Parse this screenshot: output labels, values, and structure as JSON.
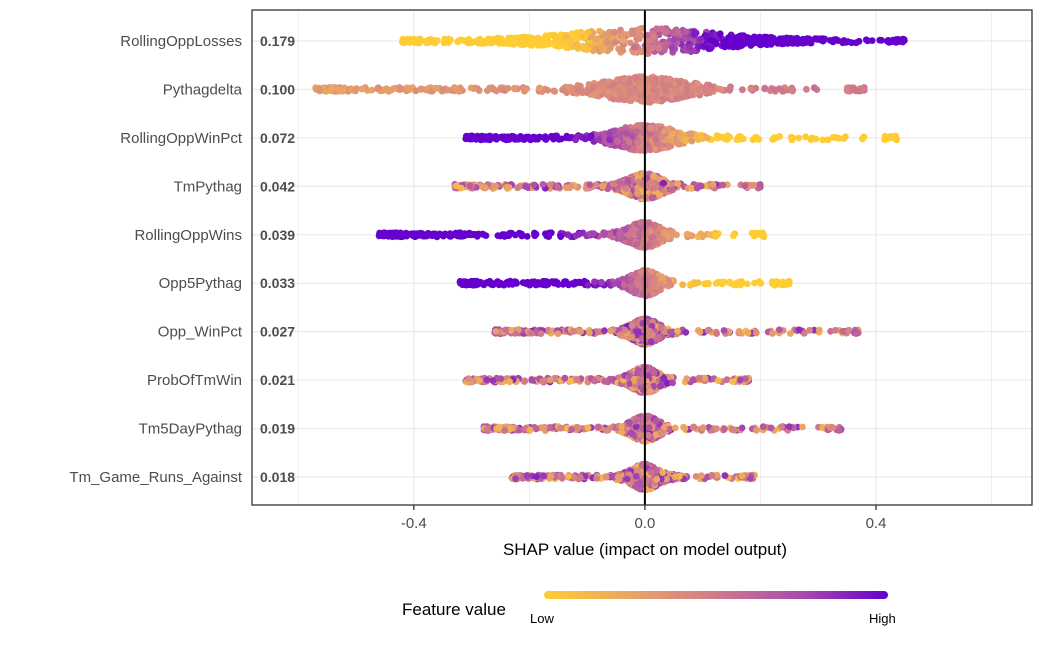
{
  "chart_data": {
    "type": "scatter",
    "subtype": "shap-beeswarm",
    "xlabel": "SHAP value (impact on model output)",
    "xlim": [
      -0.68,
      0.67
    ],
    "xticks": [
      -0.4,
      0.0,
      0.4
    ],
    "xtick_labels": [
      "-0.4",
      "0.0",
      "0.4"
    ],
    "grid": true,
    "zero_line": true,
    "features": [
      {
        "name": "RollingOppLosses",
        "mean_abs_shap": "0.179",
        "shap_range": [
          -0.42,
          0.45
        ],
        "color_trend": "high-positive"
      },
      {
        "name": "Pythagdelta",
        "mean_abs_shap": "0.100",
        "shap_range": [
          -0.57,
          0.38
        ],
        "color_trend": "mid"
      },
      {
        "name": "RollingOppWinPct",
        "mean_abs_shap": "0.072",
        "shap_range": [
          -0.31,
          0.44
        ],
        "color_trend": "high-negative"
      },
      {
        "name": "TmPythag",
        "mean_abs_shap": "0.042",
        "shap_range": [
          -0.33,
          0.2
        ],
        "color_trend": "mixed"
      },
      {
        "name": "RollingOppWins",
        "mean_abs_shap": "0.039",
        "shap_range": [
          -0.46,
          0.21
        ],
        "color_trend": "high-negative"
      },
      {
        "name": "Opp5Pythag",
        "mean_abs_shap": "0.033",
        "shap_range": [
          -0.32,
          0.25
        ],
        "color_trend": "high-negative"
      },
      {
        "name": "Opp_WinPct",
        "mean_abs_shap": "0.027",
        "shap_range": [
          -0.26,
          0.37
        ],
        "color_trend": "mixed"
      },
      {
        "name": "ProbOfTmWin",
        "mean_abs_shap": "0.021",
        "shap_range": [
          -0.31,
          0.18
        ],
        "color_trend": "mixed"
      },
      {
        "name": "Tm5DayPythag",
        "mean_abs_shap": "0.019",
        "shap_range": [
          -0.28,
          0.34
        ],
        "color_trend": "mixed"
      },
      {
        "name": "Tm_Game_Runs_Against",
        "mean_abs_shap": "0.018",
        "shap_range": [
          -0.23,
          0.19
        ],
        "color_trend": "mixed"
      }
    ],
    "legend": {
      "title": "Feature value",
      "low_label": "Low",
      "high_label": "High",
      "placement": "bottom",
      "colors": [
        "#FFCC33",
        "#E59C6E",
        "#D07A8A",
        "#A94BAE",
        "#6600CC"
      ]
    }
  }
}
